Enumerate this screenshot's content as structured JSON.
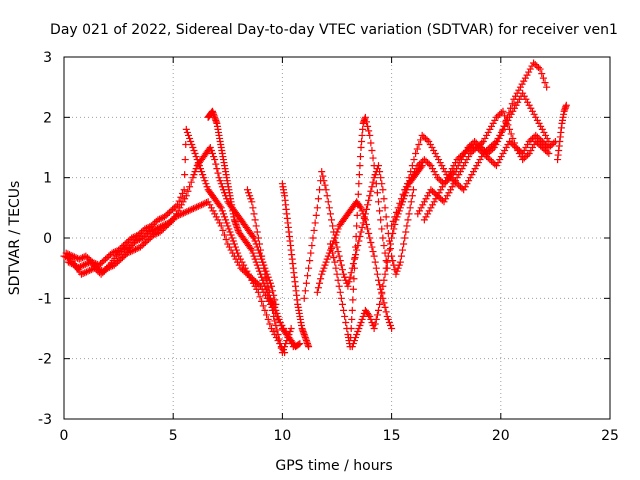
{
  "chart_data": {
    "type": "scatter",
    "title": "Day 021 of 2022, Sidereal Day-to-day VTEC variation (SDTVAR) for receiver ven1",
    "xlabel": "GPS time / hours",
    "ylabel": "SDTVAR / TECUs",
    "xlim": [
      0,
      25
    ],
    "ylim": [
      -3,
      3
    ],
    "x_ticks": [
      0,
      5,
      10,
      15,
      20,
      25
    ],
    "y_ticks": [
      -3,
      -2,
      -1,
      0,
      1,
      2,
      3
    ],
    "x_tick_labels": [
      "0",
      "5",
      "10",
      "15",
      "20",
      "25"
    ],
    "y_tick_labels": [
      "-3",
      "-2",
      "-1",
      "0",
      "1",
      "2",
      "3"
    ],
    "grid": true,
    "marker": "+",
    "color": "#ff0000",
    "series": [
      {
        "x": [
          0.0,
          0.3,
          0.6,
          0.9,
          1.2,
          1.5,
          1.8,
          2.1,
          2.4,
          2.7,
          3.0,
          3.3,
          3.6,
          3.9,
          4.2,
          4.5,
          4.8,
          5.1,
          5.4,
          5.7,
          6.0,
          6.3,
          6.6,
          6.9,
          7.2,
          7.5,
          7.8,
          8.1,
          8.4,
          8.7,
          9.0,
          9.3,
          9.6,
          9.9,
          10.2,
          10.5
        ],
        "y": [
          -0.3,
          -0.35,
          -0.5,
          -0.45,
          -0.4,
          -0.5,
          -0.55,
          -0.45,
          -0.3,
          -0.2,
          -0.15,
          -0.05,
          0.0,
          0.1,
          0.15,
          0.2,
          0.25,
          0.35,
          0.4,
          0.45,
          0.5,
          0.55,
          0.6,
          0.4,
          0.2,
          -0.1,
          -0.3,
          -0.5,
          -0.6,
          -0.7,
          -0.8,
          -1.0,
          -1.2,
          -1.4,
          -1.6,
          -1.8
        ]
      },
      {
        "x": [
          0.1,
          0.4,
          0.7,
          1.0,
          1.3,
          1.6,
          1.9,
          2.2,
          2.5,
          2.8,
          3.1,
          3.4,
          3.7,
          4.0,
          4.3,
          4.6,
          4.9,
          5.2,
          5.5,
          5.6,
          5.8,
          6.0,
          6.2,
          6.4,
          6.6,
          6.8,
          7.0,
          7.2,
          7.4,
          7.6,
          7.8,
          8.0,
          8.3,
          8.6,
          8.9,
          9.2,
          9.5,
          9.8,
          10.1
        ],
        "y": [
          -0.25,
          -0.3,
          -0.35,
          -0.3,
          -0.4,
          -0.45,
          -0.35,
          -0.25,
          -0.2,
          -0.1,
          0.0,
          0.05,
          0.15,
          0.2,
          0.3,
          0.35,
          0.45,
          0.55,
          0.8,
          1.8,
          1.6,
          1.4,
          1.2,
          1.0,
          0.8,
          0.7,
          0.6,
          0.5,
          0.3,
          0.1,
          -0.1,
          -0.3,
          -0.5,
          -0.7,
          -0.9,
          -1.2,
          -1.5,
          -1.7,
          -1.9
        ]
      },
      {
        "x": [
          0.2,
          0.5,
          0.8,
          1.1,
          1.4,
          1.7,
          2.0,
          2.3,
          2.6,
          2.9,
          3.2,
          3.5,
          3.8,
          4.1,
          4.4,
          4.7,
          5.0,
          5.3,
          5.6,
          5.9,
          6.1,
          6.3,
          6.5,
          6.7,
          6.9,
          7.1,
          7.3,
          7.5,
          7.7,
          7.9,
          8.1,
          8.3,
          8.5,
          8.7,
          8.9,
          9.1,
          9.3,
          9.5,
          9.7
        ],
        "y": [
          -0.4,
          -0.45,
          -0.6,
          -0.55,
          -0.5,
          -0.6,
          -0.5,
          -0.45,
          -0.35,
          -0.25,
          -0.2,
          -0.15,
          -0.05,
          0.05,
          0.1,
          0.2,
          0.3,
          0.5,
          0.7,
          1.0,
          1.2,
          1.3,
          1.4,
          1.5,
          1.3,
          1.0,
          0.8,
          0.6,
          0.5,
          0.4,
          0.3,
          0.2,
          0.1,
          0.0,
          -0.2,
          -0.4,
          -0.6,
          -0.8,
          -1.1
        ]
      },
      {
        "x": [
          6.6,
          6.7,
          6.8,
          6.9,
          7.0,
          7.1,
          7.2,
          7.3,
          7.4,
          7.5,
          7.6,
          7.7,
          7.8,
          7.9,
          8.0,
          8.2,
          8.4,
          8.6,
          8.8,
          9.0,
          9.2,
          9.4,
          9.6,
          9.8,
          10.0,
          10.2,
          10.4,
          10.6,
          10.8
        ],
        "y": [
          2.0,
          2.05,
          2.1,
          2.0,
          1.9,
          1.7,
          1.5,
          1.3,
          1.1,
          0.9,
          0.7,
          0.5,
          0.3,
          0.2,
          0.1,
          0.0,
          -0.1,
          -0.2,
          -0.4,
          -0.6,
          -0.8,
          -1.0,
          -1.1,
          -1.3,
          -1.5,
          -1.6,
          -1.7,
          -1.8,
          -1.75
        ]
      },
      {
        "x": [
          8.4,
          8.6,
          8.8,
          9.0,
          9.2,
          9.4,
          9.6,
          9.8,
          10.0,
          10.2,
          10.4
        ],
        "y": [
          0.8,
          0.6,
          0.2,
          -0.2,
          -0.6,
          -0.9,
          -1.3,
          -1.6,
          -1.9,
          -1.7,
          -1.5
        ]
      },
      {
        "x": [
          10.0,
          10.1,
          10.2,
          10.3,
          10.4,
          10.5,
          10.6,
          10.7,
          10.8,
          10.9,
          11.0,
          11.1,
          11.2
        ],
        "y": [
          0.9,
          0.7,
          0.4,
          0.1,
          -0.2,
          -0.5,
          -0.8,
          -1.1,
          -1.3,
          -1.5,
          -1.6,
          -1.7,
          -1.8
        ]
      },
      {
        "x": [
          11.0,
          11.2,
          11.4,
          11.6,
          11.8,
          12.0,
          12.2,
          12.4,
          12.6,
          12.8,
          13.0,
          13.2,
          13.4,
          13.6,
          13.8,
          14.0,
          14.2,
          14.4,
          14.6,
          14.8,
          15.0,
          15.2,
          15.4,
          15.6,
          15.8,
          16.0
        ],
        "y": [
          -1.0,
          -0.5,
          0.0,
          0.5,
          1.1,
          0.8,
          0.4,
          0.0,
          -0.3,
          -0.6,
          -0.8,
          -0.5,
          -0.2,
          0.1,
          0.4,
          0.7,
          1.0,
          1.2,
          0.8,
          0.2,
          -0.3,
          -0.6,
          -0.4,
          0.0,
          0.4,
          0.8
        ]
      },
      {
        "x": [
          11.6,
          11.8,
          12.0,
          12.2,
          12.4,
          12.6,
          12.8,
          13.0,
          13.2,
          13.4,
          13.6,
          13.8,
          14.0,
          14.2,
          14.4,
          14.6,
          14.8,
          15.0
        ],
        "y": [
          -0.9,
          -0.6,
          -0.4,
          -0.2,
          0.0,
          0.2,
          0.3,
          0.4,
          0.5,
          0.6,
          0.5,
          0.3,
          0.0,
          -0.3,
          -0.7,
          -1.0,
          -1.3,
          -1.5
        ]
      },
      {
        "x": [
          12.2,
          12.4,
          12.6,
          12.8,
          13.0,
          13.1,
          13.2,
          13.3,
          13.4,
          13.5,
          13.6,
          13.7,
          13.8,
          14.0,
          14.2,
          14.4,
          14.6,
          14.8
        ],
        "y": [
          -0.1,
          -0.4,
          -0.8,
          -1.2,
          -1.6,
          -1.8,
          -1.2,
          -0.5,
          0.2,
          0.9,
          1.5,
          1.9,
          2.0,
          1.7,
          1.2,
          0.6,
          0.0,
          -0.5
        ]
      },
      {
        "x": [
          13.2,
          13.4,
          13.6,
          13.8,
          14.0,
          14.2,
          14.4,
          14.6,
          14.8,
          15.0,
          15.2,
          15.4,
          15.6,
          15.8,
          16.0,
          16.2,
          16.4
        ],
        "y": [
          -1.8,
          -1.6,
          -1.4,
          -1.2,
          -1.3,
          -1.5,
          -1.2,
          -0.8,
          -0.4,
          0.0,
          0.3,
          0.5,
          0.7,
          0.9,
          1.0,
          1.1,
          1.2
        ]
      },
      {
        "x": [
          15.0,
          15.3,
          15.6,
          15.9,
          16.2,
          16.5,
          16.8,
          17.1,
          17.4,
          17.7,
          18.0,
          18.3,
          18.6,
          18.9,
          19.2,
          19.5,
          19.8,
          20.1,
          20.4,
          20.7,
          21.0,
          21.3,
          21.6,
          21.9,
          22.2
        ],
        "y": [
          0.2,
          0.5,
          0.8,
          1.0,
          1.2,
          1.3,
          1.2,
          1.0,
          0.9,
          1.1,
          1.3,
          1.4,
          1.5,
          1.5,
          1.4,
          1.5,
          1.6,
          1.8,
          2.0,
          2.2,
          2.4,
          2.2,
          2.0,
          1.8,
          1.6
        ]
      },
      {
        "x": [
          15.5,
          15.8,
          16.1,
          16.4,
          16.7,
          17.0,
          17.3,
          17.6,
          17.9,
          18.2,
          18.5,
          18.8,
          19.1,
          19.4,
          19.7,
          20.0,
          20.3,
          20.6,
          20.9,
          21.2,
          21.5,
          21.8,
          22.1
        ],
        "y": [
          0.6,
          1.0,
          1.4,
          1.7,
          1.6,
          1.4,
          1.2,
          1.0,
          1.1,
          1.3,
          1.5,
          1.6,
          1.5,
          1.4,
          1.5,
          1.7,
          2.0,
          2.3,
          2.5,
          2.7,
          2.9,
          2.8,
          2.5
        ]
      },
      {
        "x": [
          16.2,
          16.5,
          16.8,
          17.1,
          17.4,
          17.7,
          18.0,
          18.3,
          18.6,
          18.9,
          19.2,
          19.5,
          19.8,
          20.1,
          20.4,
          20.7,
          21.0,
          21.3,
          21.6,
          21.9,
          22.2
        ],
        "y": [
          0.4,
          0.6,
          0.8,
          0.7,
          0.6,
          0.8,
          1.0,
          1.2,
          1.4,
          1.5,
          1.6,
          1.8,
          2.0,
          2.1,
          1.8,
          1.5,
          1.3,
          1.4,
          1.6,
          1.5,
          1.4
        ]
      },
      {
        "x": [
          16.5,
          16.8,
          17.1,
          17.4,
          17.7,
          18.0,
          18.3,
          18.6,
          18.9,
          19.2,
          19.5,
          19.8,
          20.1,
          20.4,
          20.7,
          21.0,
          21.3,
          21.6,
          21.9,
          22.2,
          22.5
        ],
        "y": [
          0.3,
          0.5,
          0.7,
          0.9,
          1.0,
          0.9,
          0.8,
          1.0,
          1.2,
          1.4,
          1.3,
          1.2,
          1.4,
          1.6,
          1.5,
          1.4,
          1.6,
          1.7,
          1.6,
          1.5,
          1.6
        ]
      },
      {
        "x": [
          22.6,
          22.7,
          22.8,
          22.9,
          23.0
        ],
        "y": [
          1.3,
          1.6,
          1.9,
          2.1,
          2.2
        ]
      }
    ]
  }
}
